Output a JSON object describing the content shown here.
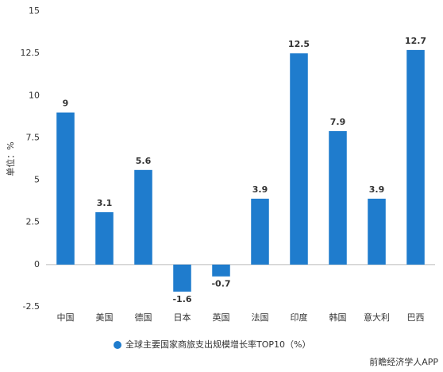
{
  "chart_data": {
    "type": "bar",
    "y_label": "单位：%",
    "categories": [
      "中国",
      "美国",
      "德国",
      "日本",
      "英国",
      "法国",
      "印度",
      "韩国",
      "意大利",
      "巴西"
    ],
    "series": [
      {
        "name": "全球主要国家商旅支出规模增长率TOP10（%）",
        "color": "#1f7ccd",
        "values": [
          9,
          3.1,
          5.6,
          -1.6,
          -0.7,
          3.9,
          12.5,
          7.9,
          3.9,
          12.7
        ]
      }
    ],
    "ylim": [
      -2.5,
      15
    ],
    "yticks": [
      -2.5,
      0,
      2.5,
      5,
      7.5,
      10,
      12.5,
      15
    ],
    "grid": false,
    "legend": "bottom",
    "source": "前瞻经济学人APP"
  }
}
